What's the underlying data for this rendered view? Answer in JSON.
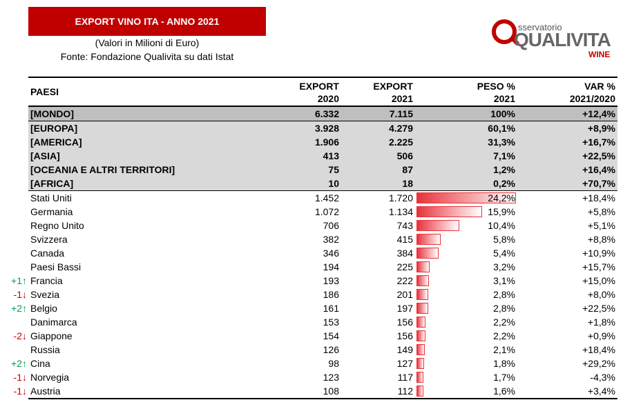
{
  "title": "EXPORT VINO ITA - ANNO 2021",
  "subtitle1": "(Valori in Milioni di Euro)",
  "subtitle2": "Fonte: Fondazione Qualivita su dati Istat",
  "logo": {
    "top": "sservatorio",
    "main": "QUALIVITA",
    "wine": "WINE",
    "brand_color": "#c00000"
  },
  "headers": {
    "paesi": "PAESI",
    "export2020_l1": "EXPORT",
    "export2020_l2": "2020",
    "export2021_l1": "EXPORT",
    "export2021_l2": "2021",
    "peso_l1": "PESO %",
    "peso_l2": "2021",
    "var_l1": "VAR %",
    "var_l2": "2021/2020"
  },
  "aggregates": [
    {
      "name": "[MONDO]",
      "e2020": "6.332",
      "e2021": "7.115",
      "peso": "100%",
      "var": "+12,4%"
    },
    {
      "name": "[EUROPA]",
      "e2020": "3.928",
      "e2021": "4.279",
      "peso": "60,1%",
      "var": "+8,9%"
    },
    {
      "name": "[AMERICA]",
      "e2020": "1.906",
      "e2021": "2.225",
      "peso": "31,3%",
      "var": "+16,7%"
    },
    {
      "name": "[ASIA]",
      "e2020": "413",
      "e2021": "506",
      "peso": "7,1%",
      "var": "+22,5%"
    },
    {
      "name": "[OCEANIA E ALTRI TERRITORI]",
      "e2020": "75",
      "e2021": "87",
      "peso": "1,2%",
      "var": "+16,4%"
    },
    {
      "name": "[AFRICA]",
      "e2020": "10",
      "e2021": "18",
      "peso": "0,2%",
      "var": "+70,7%"
    }
  ],
  "countries": [
    {
      "rank": "",
      "dir": "",
      "name": "Stati Uniti",
      "e2020": "1.452",
      "e2021": "1.720",
      "peso": "24,2%",
      "peso_value": 24.2,
      "var": "+18,4%"
    },
    {
      "rank": "",
      "dir": "",
      "name": "Germania",
      "e2020": "1.072",
      "e2021": "1.134",
      "peso": "15,9%",
      "peso_value": 15.9,
      "var": "+5,8%"
    },
    {
      "rank": "",
      "dir": "",
      "name": "Regno Unito",
      "e2020": "706",
      "e2021": "743",
      "peso": "10,4%",
      "peso_value": 10.4,
      "var": "+5,1%"
    },
    {
      "rank": "",
      "dir": "",
      "name": "Svizzera",
      "e2020": "382",
      "e2021": "415",
      "peso": "5,8%",
      "peso_value": 5.8,
      "var": "+8,8%"
    },
    {
      "rank": "",
      "dir": "",
      "name": "Canada",
      "e2020": "346",
      "e2021": "384",
      "peso": "5,4%",
      "peso_value": 5.4,
      "var": "+10,9%"
    },
    {
      "rank": "",
      "dir": "",
      "name": "Paesi Bassi",
      "e2020": "194",
      "e2021": "225",
      "peso": "3,2%",
      "peso_value": 3.2,
      "var": "+15,7%"
    },
    {
      "rank": "+1",
      "dir": "up",
      "name": "Francia",
      "e2020": "193",
      "e2021": "222",
      "peso": "3,1%",
      "peso_value": 3.1,
      "var": "+15,0%"
    },
    {
      "rank": "-1",
      "dir": "down",
      "name": "Svezia",
      "e2020": "186",
      "e2021": "201",
      "peso": "2,8%",
      "peso_value": 2.8,
      "var": "+8,0%"
    },
    {
      "rank": "+2",
      "dir": "up",
      "name": "Belgio",
      "e2020": "161",
      "e2021": "197",
      "peso": "2,8%",
      "peso_value": 2.8,
      "var": "+22,5%"
    },
    {
      "rank": "",
      "dir": "",
      "name": "Danimarca",
      "e2020": "153",
      "e2021": "156",
      "peso": "2,2%",
      "peso_value": 2.2,
      "var": "+1,8%"
    },
    {
      "rank": "-2",
      "dir": "down",
      "name": "Giappone",
      "e2020": "154",
      "e2021": "156",
      "peso": "2,2%",
      "peso_value": 2.2,
      "var": "+0,9%"
    },
    {
      "rank": "",
      "dir": "",
      "name": "Russia",
      "e2020": "126",
      "e2021": "149",
      "peso": "2,1%",
      "peso_value": 2.1,
      "var": "+18,4%"
    },
    {
      "rank": "+2",
      "dir": "up",
      "name": "Cina",
      "e2020": "98",
      "e2021": "127",
      "peso": "1,8%",
      "peso_value": 1.8,
      "var": "+29,2%"
    },
    {
      "rank": "-1",
      "dir": "down",
      "name": "Norvegia",
      "e2020": "123",
      "e2021": "117",
      "peso": "1,7%",
      "peso_value": 1.7,
      "var": "-4,3%"
    },
    {
      "rank": "-1",
      "dir": "down",
      "name": "Austria",
      "e2020": "108",
      "e2021": "112",
      "peso": "1,6%",
      "peso_value": 1.6,
      "var": "+3,4%"
    }
  ],
  "colors": {
    "title_bg": "#c00000",
    "bar": "#e8323a",
    "up": "#00a04a",
    "down": "#c00000"
  }
}
